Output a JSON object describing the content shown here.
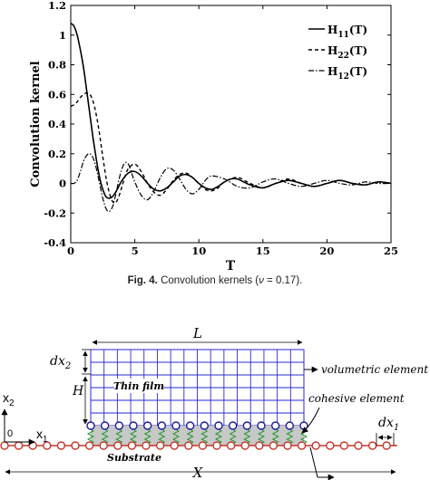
{
  "figure_chart": {
    "ylabel": "Convolution kernel",
    "xlabel": "T",
    "x_ticks": [
      "0",
      "5",
      "10",
      "15",
      "20",
      "25"
    ],
    "y_ticks": [
      "1.2",
      "1",
      "0.8",
      "0.6",
      "0.4",
      "0.2",
      "0",
      "-0.2",
      "-0.4"
    ]
  },
  "caption": {
    "label": "Fig. 4.",
    "text": "Convolution kernels (",
    "nu": "ν",
    "eq": " = 0.17)."
  },
  "chart_data": {
    "type": "line",
    "xlabel": "T",
    "ylabel": "Convolution kernel",
    "xlim": [
      0,
      25
    ],
    "ylim": [
      -0.4,
      1.2
    ],
    "grid": false,
    "legend_placement": "top-right",
    "series": [
      {
        "name": "H11(T)",
        "legend_main": "H",
        "legend_sub": "11",
        "legend_tail": "(T)",
        "style": "solid",
        "x": [
          0,
          0.25,
          0.5,
          0.75,
          1,
          1.25,
          1.5,
          1.75,
          2,
          2.25,
          2.5,
          2.75,
          3,
          3.25,
          3.5,
          3.75,
          4,
          4.5,
          5,
          5.5,
          6,
          6.5,
          7,
          7.5,
          8,
          8.5,
          9,
          9.5,
          10,
          10.5,
          11,
          11.5,
          12,
          12.5,
          13,
          13.5,
          14,
          15,
          16,
          17,
          18,
          19,
          20,
          21,
          22,
          23,
          24,
          25
        ],
        "values": [
          1.08,
          1.06,
          1.0,
          0.9,
          0.78,
          0.62,
          0.46,
          0.3,
          0.16,
          0.04,
          -0.04,
          -0.09,
          -0.1,
          -0.09,
          -0.06,
          -0.02,
          0.02,
          0.07,
          0.08,
          0.05,
          0.0,
          -0.04,
          -0.05,
          -0.03,
          0.01,
          0.05,
          0.06,
          0.04,
          0.0,
          -0.03,
          -0.04,
          -0.02,
          0.01,
          0.03,
          0.03,
          0.01,
          -0.01,
          -0.03,
          0.0,
          0.02,
          0.0,
          -0.02,
          0.0,
          0.02,
          0.0,
          -0.01,
          0.01,
          0.0
        ]
      },
      {
        "name": "H22(T)",
        "legend_main": "H",
        "legend_sub": "22",
        "legend_tail": "(T)",
        "style": "dashed",
        "x": [
          0,
          0.25,
          0.5,
          0.75,
          1,
          1.25,
          1.5,
          1.75,
          2,
          2.25,
          2.5,
          2.75,
          3,
          3.25,
          3.5,
          3.75,
          4,
          4.25,
          4.5,
          5,
          5.5,
          6,
          6.5,
          7,
          7.5,
          8,
          8.5,
          9,
          9.5,
          10,
          10.5,
          11,
          11.5,
          12,
          13,
          14,
          15,
          16,
          17,
          18,
          19,
          20,
          21,
          22,
          23,
          24,
          25
        ],
        "values": [
          0.52,
          0.53,
          0.55,
          0.58,
          0.6,
          0.61,
          0.6,
          0.55,
          0.46,
          0.33,
          0.18,
          0.04,
          -0.06,
          -0.12,
          -0.13,
          -0.09,
          -0.02,
          0.05,
          0.1,
          0.13,
          0.08,
          0.0,
          -0.06,
          -0.08,
          -0.04,
          0.02,
          0.06,
          0.07,
          0.04,
          0.0,
          -0.04,
          -0.05,
          -0.03,
          0.01,
          0.04,
          0.0,
          -0.03,
          0.0,
          0.03,
          0.0,
          -0.02,
          0.0,
          0.02,
          0.0,
          -0.01,
          0.01,
          0.0
        ]
      },
      {
        "name": "H12(T)",
        "legend_main": "H",
        "legend_sub": "12",
        "legend_tail": "(T)",
        "style": "dashdot",
        "x": [
          0,
          0.25,
          0.5,
          0.75,
          1,
          1.25,
          1.5,
          1.75,
          2,
          2.25,
          2.5,
          2.75,
          3,
          3.25,
          3.5,
          3.75,
          4,
          4.25,
          4.5,
          4.75,
          5,
          5.5,
          6,
          6.5,
          7,
          7.5,
          8,
          8.5,
          9,
          9.5,
          10,
          10.5,
          11,
          12,
          13,
          14,
          15,
          16,
          17,
          18,
          19,
          20,
          21,
          22,
          23,
          24,
          25
        ],
        "values": [
          0.0,
          0.0,
          0.02,
          0.08,
          0.15,
          0.19,
          0.2,
          0.17,
          0.1,
          0.0,
          -0.1,
          -0.17,
          -0.19,
          -0.16,
          -0.08,
          0.02,
          0.1,
          0.14,
          0.13,
          0.07,
          0.01,
          -0.08,
          -0.11,
          -0.05,
          0.04,
          0.1,
          0.09,
          0.03,
          -0.04,
          -0.07,
          -0.04,
          0.02,
          0.05,
          0.03,
          -0.02,
          -0.03,
          0.01,
          0.03,
          0.0,
          -0.02,
          0.0,
          0.02,
          0.0,
          -0.01,
          0.01,
          0.0,
          0.0
        ]
      }
    ]
  },
  "figure_diagram": {
    "label_dx2_main": "dx",
    "label_dx2_sub": "2",
    "label_L": "L",
    "label_H": "H",
    "label_thin_film": "Thin film",
    "label_x2_main": "x",
    "label_x2_sub": "2",
    "label_x1_main": "x",
    "label_x1_sub": "1",
    "label_origin": "0",
    "label_dx1_main": "dx",
    "label_dx1_sub": "1",
    "label_substrate": "Substrate",
    "label_X": "X",
    "label_volumetric": "volumetric element",
    "label_cohesive": "cohesive element"
  }
}
